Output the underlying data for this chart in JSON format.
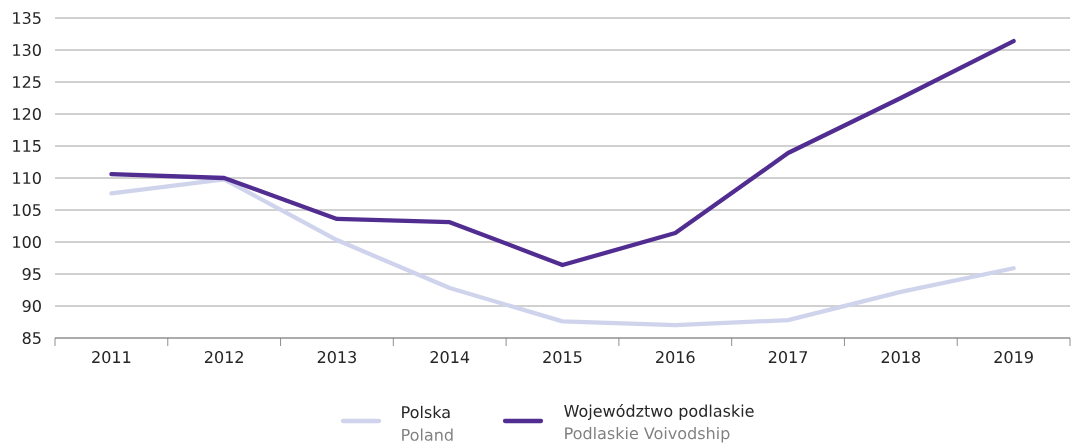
{
  "chart_data": {
    "type": "line",
    "categories": [
      "2011",
      "2012",
      "2013",
      "2014",
      "2015",
      "2016",
      "2017",
      "2018",
      "2019"
    ],
    "series": [
      {
        "name": "Polska",
        "color": "#cfd4ec",
        "values": [
          107.6,
          109.8,
          100.3,
          92.8,
          87.6,
          87.0,
          87.8,
          92.2,
          95.9
        ]
      },
      {
        "name": "Województwo podlaskie",
        "color": "#512d91",
        "values": [
          110.6,
          110.0,
          103.6,
          103.1,
          96.4,
          101.4,
          113.9,
          122.5,
          131.4
        ]
      }
    ],
    "ylim": [
      85,
      135
    ],
    "yticks": [
      85,
      90,
      95,
      100,
      105,
      110,
      115,
      120,
      125,
      130,
      135
    ],
    "grid": "y",
    "legend": "bottom",
    "marker": "none",
    "line_style": "solid",
    "annotations": [
      "Poland",
      "Podlaskie Voivodship"
    ]
  }
}
